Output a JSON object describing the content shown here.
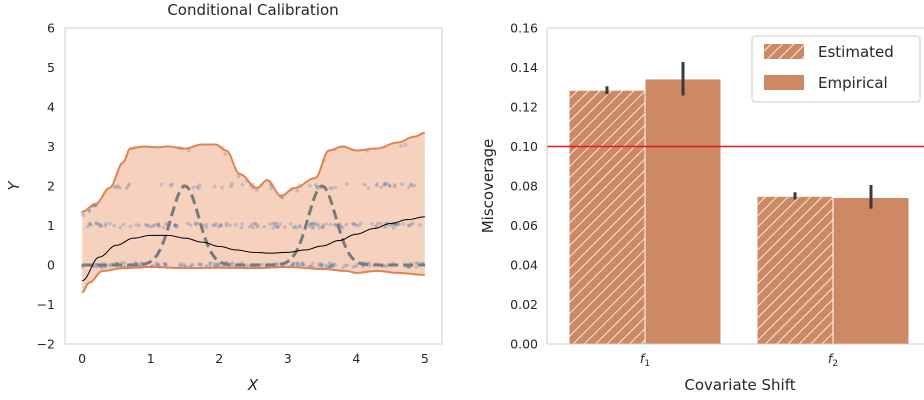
{
  "chart_data": [
    {
      "type": "line",
      "title": "Conditional Calibration",
      "xlabel": "X",
      "ylabel": "Y",
      "xlim": [
        -0.25,
        5.25
      ],
      "ylim": [
        -2,
        6
      ],
      "xticks": [
        0,
        1,
        2,
        3,
        4,
        5
      ],
      "yticks": [
        -2,
        -1,
        0,
        1,
        2,
        3,
        4,
        5,
        6
      ],
      "ytick_labels": [
        "−2",
        "−1",
        "0",
        "1",
        "2",
        "3",
        "4",
        "5",
        "6"
      ],
      "grid": false,
      "colors": {
        "band_fill": "#f5c9b3",
        "band_edge": "#dd8452",
        "dashed": "#7a7a7a",
        "curve": "#000000",
        "points": "#4c72b0"
      },
      "upper_bound": {
        "x": [
          0.0,
          0.2,
          0.4,
          0.6,
          0.7,
          0.9,
          1.1,
          1.25,
          1.5,
          1.75,
          1.95,
          2.1,
          2.3,
          2.55,
          2.7,
          2.9,
          3.1,
          3.4,
          3.6,
          3.8,
          4.0,
          4.3,
          4.6,
          4.85,
          5.0
        ],
        "y": [
          1.35,
          1.55,
          1.95,
          2.6,
          2.95,
          3.0,
          2.98,
          3.0,
          2.95,
          3.05,
          3.05,
          2.9,
          2.3,
          1.95,
          2.15,
          1.75,
          1.95,
          2.2,
          2.9,
          3.0,
          2.9,
          2.95,
          3.1,
          3.25,
          3.35
        ]
      },
      "lower_bound": {
        "x": [
          0.0,
          0.1,
          0.3,
          0.6,
          1.0,
          1.5,
          2.0,
          2.5,
          3.0,
          3.5,
          3.85,
          4.0,
          4.3,
          4.6,
          5.0
        ],
        "y": [
          -0.7,
          -0.45,
          -0.15,
          -0.08,
          -0.05,
          -0.08,
          -0.07,
          -0.08,
          -0.05,
          -0.1,
          -0.15,
          -0.2,
          -0.15,
          -0.2,
          -0.25
        ]
      },
      "dashed_series": {
        "bumps": [
          {
            "center": 1.5,
            "height": 2.0,
            "width": 0.2
          },
          {
            "center": 3.5,
            "height": 2.0,
            "width": 0.2
          }
        ]
      },
      "solid_series": {
        "x": [
          0.0,
          0.25,
          0.5,
          0.75,
          1.0,
          1.25,
          1.5,
          1.75,
          2.0,
          2.25,
          2.5,
          2.75,
          3.0,
          3.25,
          3.5,
          3.75,
          4.0,
          4.25,
          4.5,
          4.75,
          5.0
        ],
        "y": [
          -0.4,
          0.2,
          0.5,
          0.68,
          0.75,
          0.75,
          0.68,
          0.58,
          0.47,
          0.38,
          0.32,
          0.3,
          0.32,
          0.38,
          0.48,
          0.62,
          0.78,
          0.92,
          1.05,
          1.15,
          1.22
        ]
      }
    },
    {
      "type": "bar",
      "categories": [
        "f1",
        "f2"
      ],
      "category_labels": [
        {
          "base": "f",
          "sub": "1"
        },
        {
          "base": "f",
          "sub": "2"
        }
      ],
      "xlabel": "Covariate Shift",
      "ylabel": "Miscoverage",
      "ylim": [
        0,
        0.16
      ],
      "yticks": [
        0,
        0.02,
        0.04,
        0.06,
        0.08,
        0.1,
        0.12,
        0.14,
        0.16
      ],
      "ytick_labels": [
        "0.00",
        "0.02",
        "0.04",
        "0.06",
        "0.08",
        "0.10",
        "0.12",
        "0.14",
        "0.16"
      ],
      "grid": false,
      "legend_position": "top-right",
      "reference_line": {
        "y": 0.1,
        "color": "#e31a1c"
      },
      "series": [
        {
          "name": "Estimated",
          "values": [
            0.1285,
            0.0748
          ],
          "error": [
            [
              0.1265,
              0.1305
            ],
            [
              0.0732,
              0.0768
            ]
          ],
          "hatch": true,
          "color": "#cc8963"
        },
        {
          "name": "Empirical",
          "values": [
            0.1342,
            0.0742
          ],
          "error": [
            [
              0.1258,
              0.1428
            ],
            [
              0.0685,
              0.0805
            ]
          ],
          "hatch": false,
          "color": "#cc8963"
        }
      ],
      "error_color": "#3a3a3a"
    }
  ]
}
